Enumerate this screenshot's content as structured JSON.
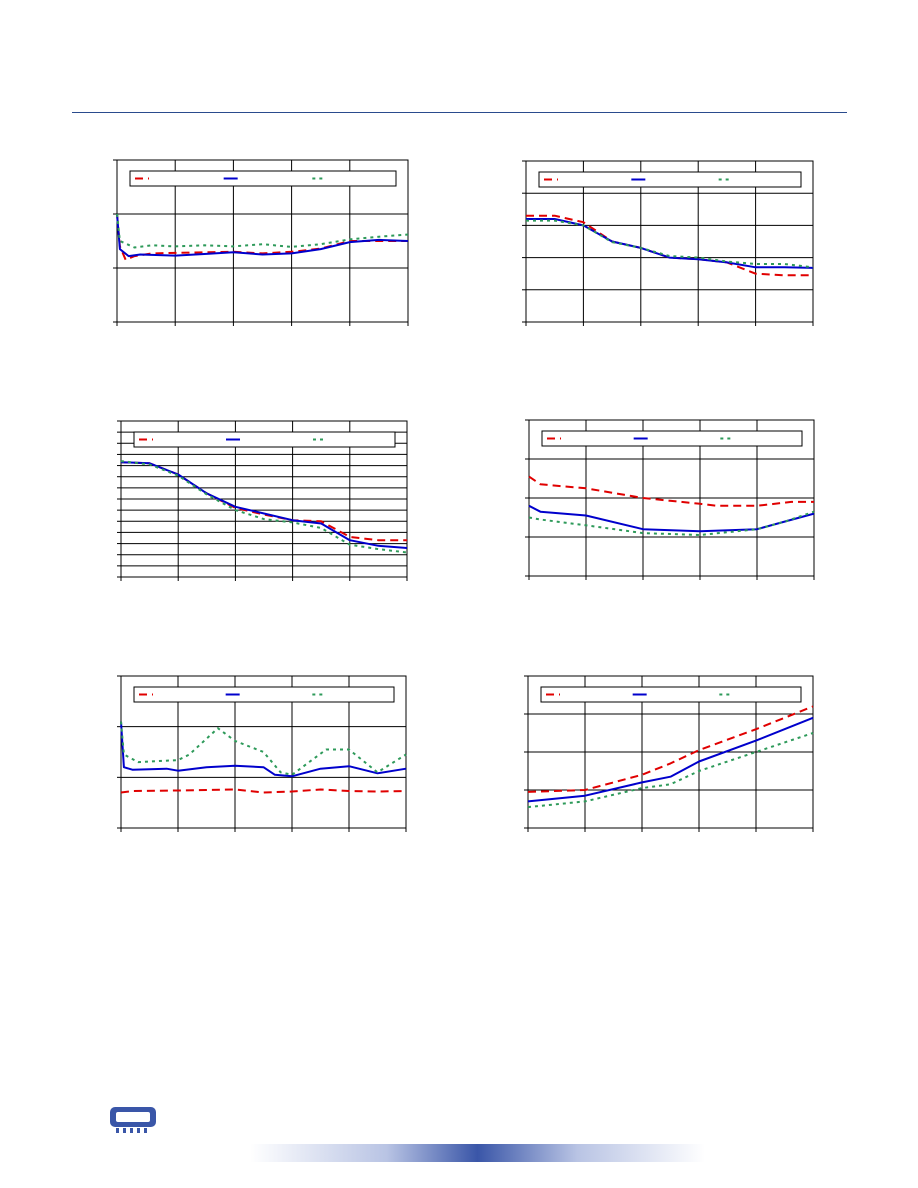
{
  "header": {
    "rule_color": "#2a4b8d"
  },
  "footer": {
    "logo_icon": "memory-module-icon",
    "bar_color": "#3a56a8"
  },
  "series_styles": [
    {
      "color": "#e00000",
      "dash": "8,5"
    },
    {
      "color": "#0000cc",
      "dash": ""
    },
    {
      "color": "#2e9a5a",
      "dash": "3,4"
    }
  ],
  "chart_data": [
    {
      "type": "line",
      "title": "",
      "xlabel": "",
      "ylabel": "",
      "xlim": [
        0,
        5
      ],
      "ylim": [
        0,
        3
      ],
      "xticks": 5,
      "yticks": 3,
      "grid": true,
      "legend": "top",
      "series": [
        {
          "values": [
            [
              0,
              2.0
            ],
            [
              0.05,
              1.4
            ],
            [
              0.15,
              1.15
            ],
            [
              0.3,
              1.22
            ],
            [
              0.6,
              1.27
            ],
            [
              1,
              1.28
            ],
            [
              1.5,
              1.29
            ],
            [
              2,
              1.3
            ],
            [
              2.5,
              1.27
            ],
            [
              3,
              1.3
            ],
            [
              3.5,
              1.36
            ],
            [
              4,
              1.5
            ],
            [
              4.5,
              1.5
            ],
            [
              5,
              1.5
            ]
          ]
        },
        {
          "values": [
            [
              0,
              2.0
            ],
            [
              0.05,
              1.35
            ],
            [
              0.2,
              1.22
            ],
            [
              0.4,
              1.25
            ],
            [
              1,
              1.23
            ],
            [
              1.5,
              1.26
            ],
            [
              2,
              1.29
            ],
            [
              2.5,
              1.25
            ],
            [
              3,
              1.27
            ],
            [
              3.5,
              1.35
            ],
            [
              4,
              1.48
            ],
            [
              4.5,
              1.52
            ],
            [
              5,
              1.5
            ]
          ]
        },
        {
          "values": [
            [
              0,
              2.0
            ],
            [
              0.05,
              1.5
            ],
            [
              0.3,
              1.38
            ],
            [
              0.6,
              1.42
            ],
            [
              1,
              1.4
            ],
            [
              1.5,
              1.42
            ],
            [
              2,
              1.4
            ],
            [
              2.5,
              1.44
            ],
            [
              3,
              1.39
            ],
            [
              3.5,
              1.44
            ],
            [
              4,
              1.53
            ],
            [
              4.5,
              1.58
            ],
            [
              5,
              1.62
            ]
          ]
        }
      ]
    },
    {
      "type": "line",
      "title": "",
      "xlabel": "",
      "ylabel": "",
      "xlim": [
        0,
        5
      ],
      "ylim": [
        0,
        5
      ],
      "xticks": 5,
      "yticks": 5,
      "grid": true,
      "legend": "top",
      "series": [
        {
          "values": [
            [
              0,
              3.3
            ],
            [
              0.5,
              3.3
            ],
            [
              1,
              3.1
            ],
            [
              1.5,
              2.5
            ],
            [
              2,
              2.3
            ],
            [
              2.5,
              2.0
            ],
            [
              3,
              1.95
            ],
            [
              3.5,
              1.85
            ],
            [
              4,
              1.5
            ],
            [
              4.5,
              1.45
            ],
            [
              5,
              1.45
            ]
          ]
        },
        {
          "values": [
            [
              0,
              3.2
            ],
            [
              0.5,
              3.2
            ],
            [
              1,
              3.0
            ],
            [
              1.5,
              2.5
            ],
            [
              2,
              2.3
            ],
            [
              2.5,
              2.0
            ],
            [
              3,
              1.95
            ],
            [
              3.5,
              1.85
            ],
            [
              4,
              1.7
            ],
            [
              4.5,
              1.7
            ],
            [
              5,
              1.68
            ]
          ]
        },
        {
          "values": [
            [
              0,
              3.15
            ],
            [
              0.5,
              3.15
            ],
            [
              1,
              3.0
            ],
            [
              1.5,
              2.48
            ],
            [
              2,
              2.3
            ],
            [
              2.5,
              2.05
            ],
            [
              3,
              2.0
            ],
            [
              3.5,
              1.88
            ],
            [
              4,
              1.8
            ],
            [
              4.5,
              1.8
            ],
            [
              5,
              1.7
            ]
          ]
        }
      ]
    },
    {
      "type": "line",
      "title": "",
      "xlabel": "",
      "ylabel": "",
      "xlim": [
        0,
        5
      ],
      "ylim": [
        0,
        14
      ],
      "xticks": 5,
      "yticks": 14,
      "grid": true,
      "legend": "top",
      "series": [
        {
          "values": [
            [
              0,
              10.3
            ],
            [
              0.5,
              10.2
            ],
            [
              1,
              9.2
            ],
            [
              1.5,
              7.5
            ],
            [
              2,
              6.2
            ],
            [
              2.5,
              5.6
            ],
            [
              3,
              5.1
            ],
            [
              3.5,
              5.0
            ],
            [
              4,
              3.6
            ],
            [
              4.5,
              3.3
            ],
            [
              5,
              3.3
            ]
          ]
        },
        {
          "values": [
            [
              0,
              10.3
            ],
            [
              0.5,
              10.2
            ],
            [
              1,
              9.2
            ],
            [
              1.5,
              7.5
            ],
            [
              2,
              6.3
            ],
            [
              2.5,
              5.7
            ],
            [
              3,
              5.1
            ],
            [
              3.5,
              4.8
            ],
            [
              4,
              3.3
            ],
            [
              4.5,
              2.8
            ],
            [
              5,
              2.6
            ]
          ]
        },
        {
          "values": [
            [
              0,
              10.4
            ],
            [
              0.5,
              10.1
            ],
            [
              1,
              9.1
            ],
            [
              1.5,
              7.4
            ],
            [
              2,
              6.0
            ],
            [
              2.5,
              5.2
            ],
            [
              3,
              4.9
            ],
            [
              3.5,
              4.4
            ],
            [
              4,
              2.9
            ],
            [
              4.5,
              2.5
            ],
            [
              5,
              2.2
            ]
          ]
        }
      ]
    },
    {
      "type": "line",
      "title": "",
      "xlabel": "",
      "ylabel": "",
      "xlim": [
        0,
        5
      ],
      "ylim": [
        0,
        4
      ],
      "xticks": 5,
      "yticks": 4,
      "grid": true,
      "legend": "top",
      "series": [
        {
          "values": [
            [
              0,
              2.55
            ],
            [
              0.2,
              2.35
            ],
            [
              1,
              2.25
            ],
            [
              2,
              2.0
            ],
            [
              3,
              1.85
            ],
            [
              3.3,
              1.8
            ],
            [
              4,
              1.8
            ],
            [
              4.6,
              1.9
            ],
            [
              5,
              1.9
            ]
          ]
        },
        {
          "values": [
            [
              0,
              1.8
            ],
            [
              0.2,
              1.65
            ],
            [
              1,
              1.55
            ],
            [
              2,
              1.2
            ],
            [
              3,
              1.15
            ],
            [
              4,
              1.2
            ],
            [
              4.5,
              1.4
            ],
            [
              5,
              1.6
            ]
          ]
        },
        {
          "values": [
            [
              0,
              1.5
            ],
            [
              0.2,
              1.45
            ],
            [
              1,
              1.3
            ],
            [
              2,
              1.1
            ],
            [
              3,
              1.05
            ],
            [
              4,
              1.2
            ],
            [
              4.5,
              1.4
            ],
            [
              5,
              1.65
            ]
          ]
        }
      ]
    },
    {
      "type": "line",
      "title": "",
      "xlabel": "",
      "ylabel": "",
      "xlim": [
        0,
        5
      ],
      "ylim": [
        0,
        3
      ],
      "xticks": 5,
      "yticks": 3,
      "grid": true,
      "legend": "top",
      "series": [
        {
          "values": [
            [
              0,
              0.7
            ],
            [
              0.2,
              0.73
            ],
            [
              1,
              0.74
            ],
            [
              1.5,
              0.75
            ],
            [
              2,
              0.76
            ],
            [
              2.5,
              0.7
            ],
            [
              3,
              0.72
            ],
            [
              3.5,
              0.76
            ],
            [
              4,
              0.73
            ],
            [
              4.5,
              0.72
            ],
            [
              5,
              0.73
            ]
          ]
        },
        {
          "values": [
            [
              0,
              2.1
            ],
            [
              0.05,
              1.2
            ],
            [
              0.2,
              1.15
            ],
            [
              0.8,
              1.17
            ],
            [
              1,
              1.13
            ],
            [
              1.5,
              1.2
            ],
            [
              2,
              1.23
            ],
            [
              2.5,
              1.2
            ],
            [
              2.7,
              1.05
            ],
            [
              3,
              1.02
            ],
            [
              3.5,
              1.17
            ],
            [
              4,
              1.22
            ],
            [
              4.5,
              1.08
            ],
            [
              5,
              1.17
            ]
          ]
        },
        {
          "values": [
            [
              0,
              2.1
            ],
            [
              0.05,
              1.45
            ],
            [
              0.3,
              1.3
            ],
            [
              1,
              1.34
            ],
            [
              1.2,
              1.45
            ],
            [
              1.7,
              1.97
            ],
            [
              2,
              1.72
            ],
            [
              2.5,
              1.5
            ],
            [
              2.8,
              1.1
            ],
            [
              3,
              1.05
            ],
            [
              3.6,
              1.55
            ],
            [
              4,
              1.55
            ],
            [
              4.5,
              1.1
            ],
            [
              5,
              1.45
            ]
          ]
        }
      ]
    },
    {
      "type": "line",
      "title": "",
      "xlabel": "",
      "ylabel": "",
      "xlim": [
        0,
        5
      ],
      "ylim": [
        0,
        4
      ],
      "xticks": 5,
      "yticks": 4,
      "grid": true,
      "legend": "top",
      "series": [
        {
          "values": [
            [
              0,
              0.95
            ],
            [
              1,
              1.0
            ],
            [
              2,
              1.4
            ],
            [
              2.5,
              1.7
            ],
            [
              3,
              2.05
            ],
            [
              4,
              2.6
            ],
            [
              5,
              3.2
            ]
          ]
        },
        {
          "values": [
            [
              0,
              0.7
            ],
            [
              1,
              0.85
            ],
            [
              2,
              1.2
            ],
            [
              2.5,
              1.35
            ],
            [
              3,
              1.75
            ],
            [
              4,
              2.3
            ],
            [
              5,
              2.9
            ]
          ]
        },
        {
          "values": [
            [
              0,
              0.55
            ],
            [
              1,
              0.7
            ],
            [
              2,
              1.05
            ],
            [
              2.5,
              1.15
            ],
            [
              3,
              1.5
            ],
            [
              4,
              2.0
            ],
            [
              5,
              2.5
            ]
          ]
        }
      ]
    }
  ]
}
